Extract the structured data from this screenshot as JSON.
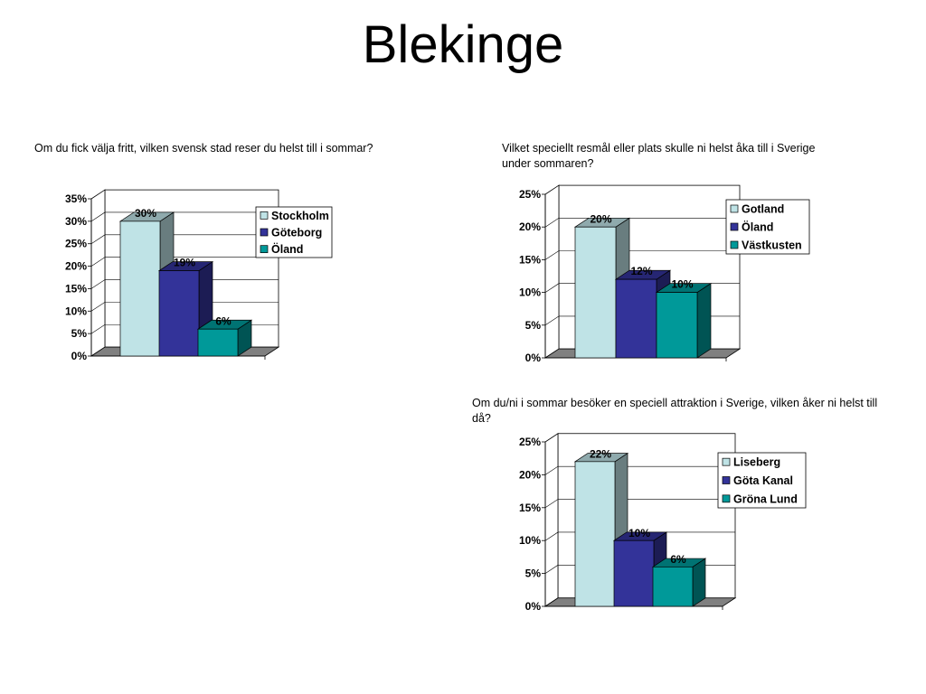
{
  "page": {
    "title": "Blekinge"
  },
  "charts": [
    {
      "question": "Om du fick välja fritt, vilken svensk stad reser du helst till i sommar?",
      "chart_data": {
        "type": "bar",
        "categories": [
          "Stockholm",
          "Göteborg",
          "Öland"
        ],
        "values": [
          30,
          19,
          6
        ],
        "value_labels": [
          "30%",
          "19%",
          "6%"
        ],
        "y_ticks": [
          "0%",
          "5%",
          "10%",
          "15%",
          "20%",
          "25%",
          "30%",
          "35%"
        ],
        "ylim": [
          0,
          35
        ],
        "legend": [
          "Stockholm",
          "Göteborg",
          "Öland"
        ],
        "legend_position": "top-right",
        "grid": true,
        "colors": [
          "#bfe3e6",
          "#333399",
          "#009999"
        ]
      }
    },
    {
      "question": "Vilket speciellt resmål eller plats skulle ni helst åka till i Sverige under sommaren?",
      "chart_data": {
        "type": "bar",
        "categories": [
          "Gotland",
          "Öland",
          "Västkusten"
        ],
        "values": [
          20,
          12,
          10
        ],
        "value_labels": [
          "20%",
          "12%",
          "10%"
        ],
        "y_ticks": [
          "0%",
          "5%",
          "10%",
          "15%",
          "20%",
          "25%"
        ],
        "ylim": [
          0,
          25
        ],
        "legend": [
          "Gotland",
          "Öland",
          "Västkusten"
        ],
        "legend_position": "top-right",
        "grid": true,
        "colors": [
          "#bfe3e6",
          "#333399",
          "#009999"
        ]
      }
    },
    {
      "question": "Om du/ni i sommar besöker en speciell attraktion i Sverige, vilken åker ni helst till då?",
      "chart_data": {
        "type": "bar",
        "categories": [
          "Liseberg",
          "Göta Kanal",
          "Gröna Lund"
        ],
        "values": [
          22,
          10,
          6
        ],
        "value_labels": [
          "22%",
          "10%",
          "6%"
        ],
        "y_ticks": [
          "0%",
          "5%",
          "10%",
          "15%",
          "20%",
          "25%"
        ],
        "ylim": [
          0,
          25
        ],
        "legend": [
          "Liseberg",
          "Göta Kanal",
          "Gröna Lund"
        ],
        "legend_position": "top-right",
        "grid": true,
        "colors": [
          "#bfe3e6",
          "#333399",
          "#009999"
        ]
      }
    }
  ]
}
